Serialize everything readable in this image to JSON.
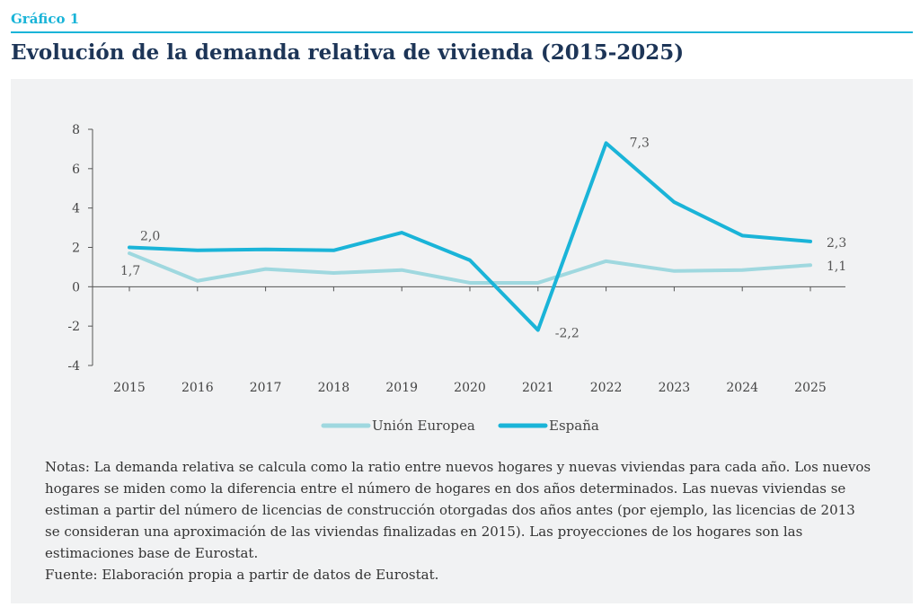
{
  "header": {
    "figure_label": "Gráfico 1",
    "title": "Evolución de la demanda relativa de vivienda (2015-2025)"
  },
  "chart_data": {
    "type": "line",
    "categories": [
      "2015",
      "2016",
      "2017",
      "2018",
      "2019",
      "2020",
      "2021",
      "2022",
      "2023",
      "2024",
      "2025"
    ],
    "ylim": [
      -4,
      8
    ],
    "yticks": [
      -4,
      -2,
      0,
      2,
      4,
      6,
      8
    ],
    "ytick_labels": [
      "-4",
      "-2",
      "0",
      "2",
      "4",
      "6",
      "8"
    ],
    "grid": false,
    "legend_position": "bottom",
    "series": [
      {
        "name": "Unión Europea",
        "color": "#9fd8df",
        "values": [
          1.7,
          0.3,
          0.9,
          0.7,
          0.85,
          0.2,
          0.2,
          1.3,
          0.8,
          0.85,
          1.1
        ]
      },
      {
        "name": "España",
        "color": "#1ab4d8",
        "values": [
          2.0,
          1.85,
          1.9,
          1.85,
          2.75,
          1.35,
          -2.2,
          7.3,
          4.3,
          2.6,
          2.3
        ]
      }
    ],
    "annotations": [
      {
        "series": 1,
        "index": 0,
        "text": "2,0"
      },
      {
        "series": 0,
        "index": 0,
        "text": "1,7"
      },
      {
        "series": 1,
        "index": 6,
        "text": "-2,2"
      },
      {
        "series": 1,
        "index": 7,
        "text": "7,3"
      },
      {
        "series": 1,
        "index": 10,
        "text": "2,3"
      },
      {
        "series": 0,
        "index": 10,
        "text": "1,1"
      }
    ]
  },
  "notes": {
    "text": "Notas: La demanda relativa se calcula como la ratio entre nuevos hogares y nuevas viviendas para cada año. Los nuevos hogares se miden como la diferencia entre el número de hogares en dos años determinados. Las nuevas viviendas se estiman a partir del número de licencias de construcción otorgadas dos años antes (por ejemplo, las licencias de 2013 se consideran una aproximación de las viviendas finalizadas en 2015). Las proyecciones de los hogares son las estimaciones base de Eurostat.",
    "source": "Fuente: Elaboración propia a partir de datos de Eurostat."
  }
}
